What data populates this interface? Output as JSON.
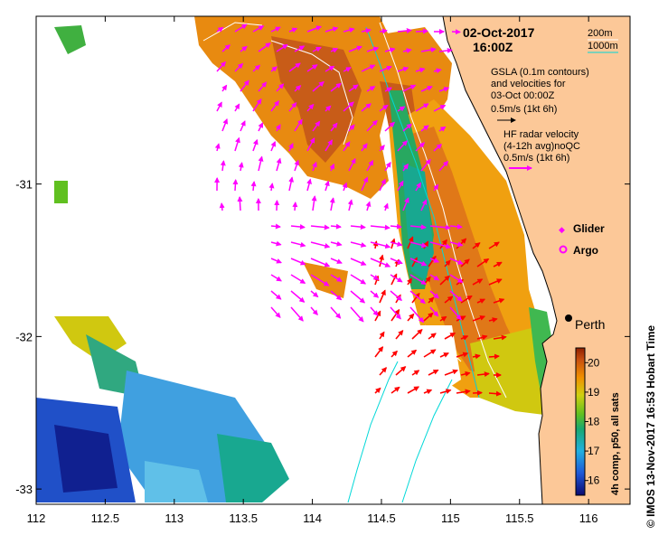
{
  "title": {
    "date": "02-Oct-2017",
    "time": "16:00Z"
  },
  "depth_legend": {
    "items": [
      "200m",
      "1000m"
    ],
    "colors": [
      "#ffffff",
      "#00d8d8"
    ]
  },
  "info": {
    "gsla_line1": "GSLA (0.1m contours)",
    "gsla_line2": "and velocities for",
    "gsla_line3": "03-Oct 00:00Z",
    "gsla_scale": "0.5m/s (1kt 6h)",
    "hf_line1": "HF radar velocity",
    "hf_line2": "(4-12h avg)noQC",
    "hf_scale": "0.5m/s (1kt 6h)"
  },
  "platform_legend": {
    "glider": "Glider",
    "argo": "Argo"
  },
  "city": {
    "name": "Perth",
    "lon": 115.86,
    "lat": -31.95
  },
  "axes": {
    "lon_min": 112,
    "lon_max": 116.3,
    "lat_min": -33.1,
    "lat_max": -29.9,
    "x_ticks": [
      "112",
      "112.5",
      "113",
      "113.5",
      "114",
      "114.5",
      "115",
      "115.5",
      "116"
    ],
    "y_ticks": [
      "-31",
      "-32",
      "-33"
    ]
  },
  "colorbar": {
    "label": "4h comp, p50, all sats",
    "min": 15.5,
    "max": 20.5,
    "ticks": [
      "16",
      "17",
      "18",
      "19",
      "20"
    ]
  },
  "credit": "© IMOS 13-Nov-2017 16:53 Hobart Time",
  "colors": {
    "land": "#fcc898",
    "gsla_arrow": "#ff00ff",
    "hf_arrow": "#ff0000",
    "contour": "#ffffff"
  }
}
